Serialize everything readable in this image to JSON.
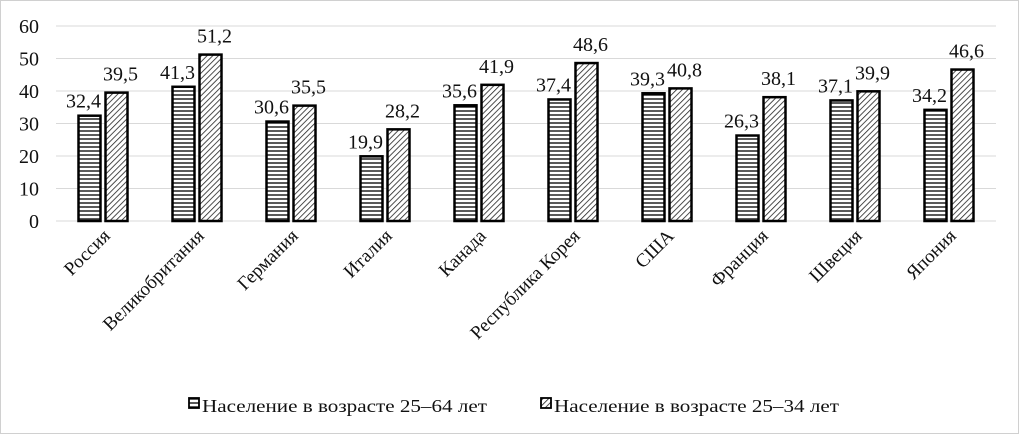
{
  "chart_data": {
    "type": "bar",
    "categories": [
      "Россия",
      "Великобритания",
      "Германия",
      "Италия",
      "Канада",
      "Республика Корея",
      "США",
      "Франция",
      "Швеция",
      "Япония"
    ],
    "series": [
      {
        "name": "Население в возрасте 25–64 лет",
        "pattern": "horizontal-lines",
        "values": [
          32.4,
          41.3,
          30.6,
          19.9,
          35.6,
          37.4,
          39.3,
          26.3,
          37.1,
          34.2
        ],
        "labels": [
          "32,4",
          "41,3",
          "30,6",
          "19,9",
          "35,6",
          "37,4",
          "39,3",
          "26,3",
          "37,1",
          "34,2"
        ]
      },
      {
        "name": "Население в возрасте 25–34 лет",
        "pattern": "diagonal-hatch",
        "values": [
          39.5,
          51.2,
          35.5,
          28.2,
          41.9,
          48.6,
          40.8,
          38.1,
          39.9,
          46.6
        ],
        "labels": [
          "39,5",
          "51,2",
          "35,5",
          "28,2",
          "41,9",
          "48,6",
          "40,8",
          "38,1",
          "39,9",
          "46,6"
        ]
      }
    ],
    "yticks": [
      "0",
      "10",
      "20",
      "30",
      "40",
      "50",
      "60"
    ],
    "ylim": [
      0,
      60
    ],
    "grid": true,
    "legend": "bottom",
    "colors": {
      "bar_stroke": "#000000",
      "grid": "#d9d9d9"
    }
  }
}
